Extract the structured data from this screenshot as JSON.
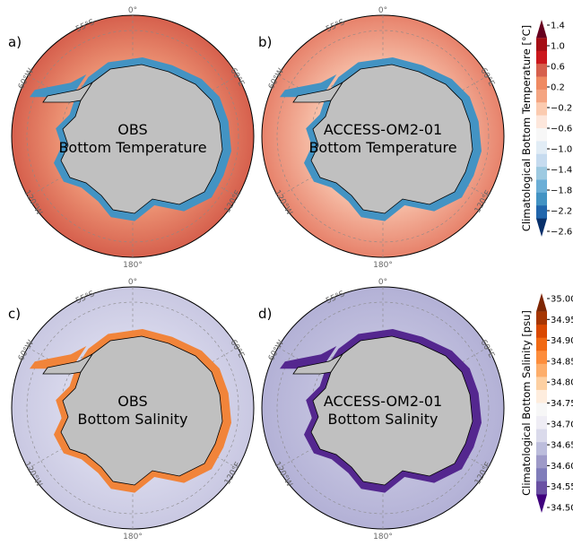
{
  "panels": [
    {
      "label": "a)",
      "title_line1": "OBS",
      "title_line2": "Bottom Temperature",
      "variable": "temperature",
      "ocean_color": "#f4a582",
      "ring_color": "#d6604d",
      "shelf_color": "#4393c3"
    },
    {
      "label": "b)",
      "title_line1": "ACCESS-OM2-01",
      "title_line2": "Bottom Temperature",
      "variable": "temperature",
      "ocean_color": "#fbd0b9",
      "ring_color": "#e7826b",
      "shelf_color": "#4393c3"
    },
    {
      "label": "c)",
      "title_line1": "OBS",
      "title_line2": "Bottom Salinity",
      "variable": "salinity",
      "ocean_color": "#dcdcee",
      "ring_color": "#c9c8e2",
      "shelf_color": "#f1843a"
    },
    {
      "label": "d)",
      "title_line1": "ACCESS-OM2-01",
      "title_line2": "Bottom Salinity",
      "variable": "salinity",
      "ocean_color": "#c5c4e0",
      "ring_color": "#b3b1d6",
      "shelf_color": "#54278f"
    }
  ],
  "map_labels": {
    "lon0": "0°",
    "lat55": "55°S",
    "w60": "60°W",
    "e60": "60°E",
    "w120": "120°W",
    "e120": "120°E",
    "lon180": "180°"
  },
  "land_color": "#c0c0c0",
  "colorbars": [
    {
      "label": "Climatological Bottom Temperature [°C]",
      "ticks": [
        "1.4",
        "1.0",
        "0.6",
        "0.2",
        "−0.2",
        "−0.6",
        "−1.0",
        "−1.4",
        "−1.8",
        "−2.2",
        "−2.6"
      ],
      "colors": [
        "#67001f",
        "#a50f15",
        "#cb181d",
        "#d6604d",
        "#ef8a62",
        "#f4a582",
        "#fbcbb0",
        "#fde7dc",
        "#f7f7f7",
        "#e1ecf5",
        "#c6dbef",
        "#9ecae1",
        "#6baed6",
        "#4393c3",
        "#2166ac",
        "#08306b"
      ]
    },
    {
      "label": "Climatological Bottom Salinity [psu]",
      "ticks": [
        "35.00",
        "34.95",
        "34.90",
        "34.85",
        "34.80",
        "34.75",
        "34.70",
        "34.65",
        "34.60",
        "34.55",
        "34.50"
      ],
      "colors": [
        "#7f2704",
        "#a63603",
        "#d94801",
        "#f16913",
        "#fd8d3c",
        "#fdae6b",
        "#fdd0a2",
        "#feedde",
        "#f7f7f7",
        "#efedf5",
        "#dadaeb",
        "#bcbddc",
        "#9e9ac8",
        "#807dba",
        "#6a51a3",
        "#3f007d"
      ]
    }
  ]
}
